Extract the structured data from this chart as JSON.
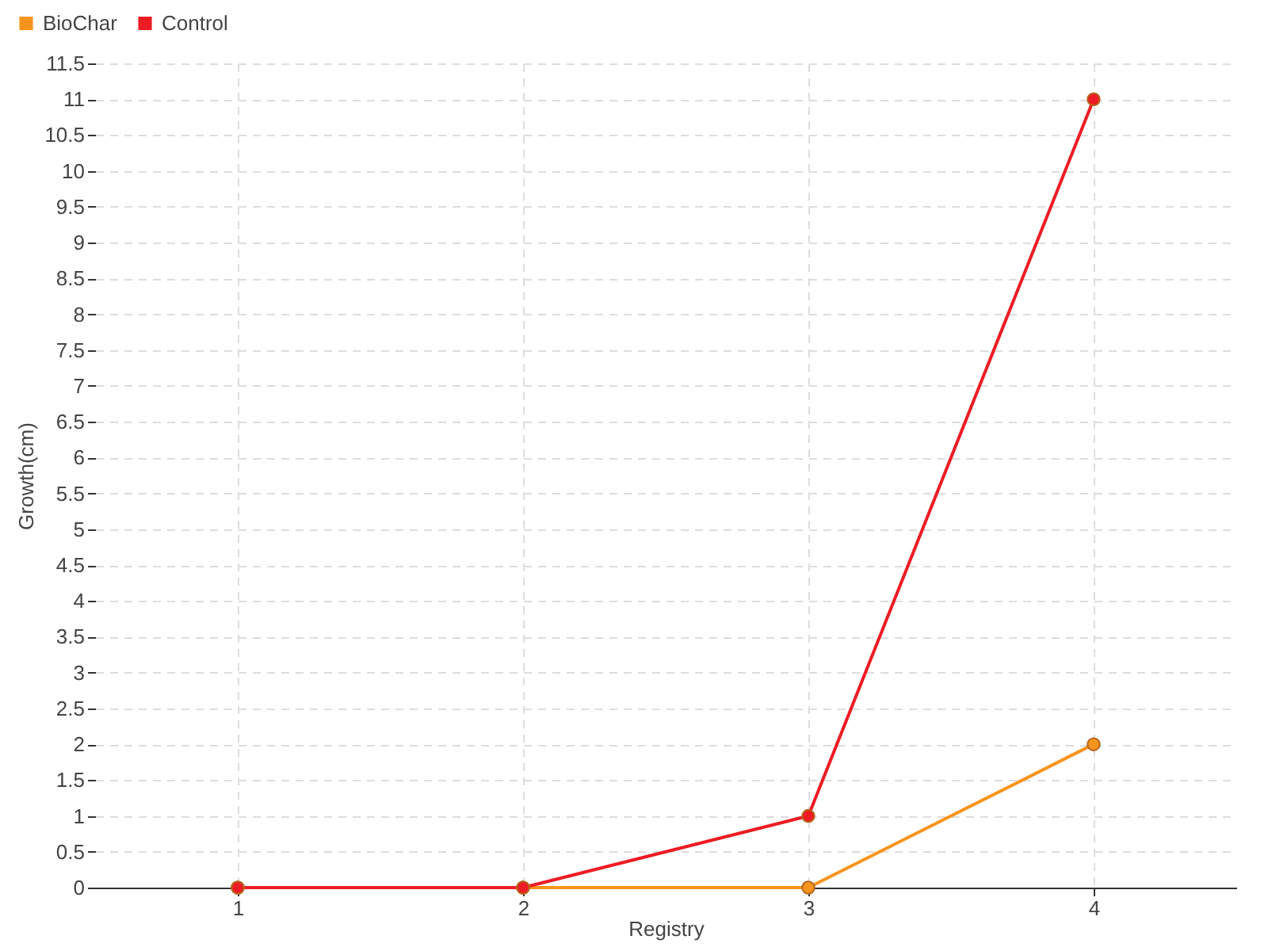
{
  "chart_data": {
    "type": "line",
    "xlabel": "Registry",
    "ylabel": "Growth(cm)",
    "x": [
      1,
      2,
      3,
      4
    ],
    "xlim": [
      0.5,
      4.5
    ],
    "xticks": [
      1,
      2,
      3,
      4
    ],
    "ylim": [
      0,
      11.5
    ],
    "yticks": [
      0,
      0.5,
      1,
      1.5,
      2,
      2.5,
      3,
      3.5,
      4,
      4.5,
      5,
      5.5,
      6,
      6.5,
      7,
      7.5,
      8,
      8.5,
      9,
      9.5,
      10,
      10.5,
      11,
      11.5
    ],
    "grid": true,
    "legend": "top left",
    "marker": "circle",
    "line_style": "solid",
    "series": [
      {
        "name": "BioChar",
        "color": "#f7941d",
        "values": [
          0,
          0,
          0,
          2
        ]
      },
      {
        "name": "Control",
        "color": "#ed1c24",
        "values": [
          0,
          0,
          1,
          11
        ]
      }
    ]
  }
}
